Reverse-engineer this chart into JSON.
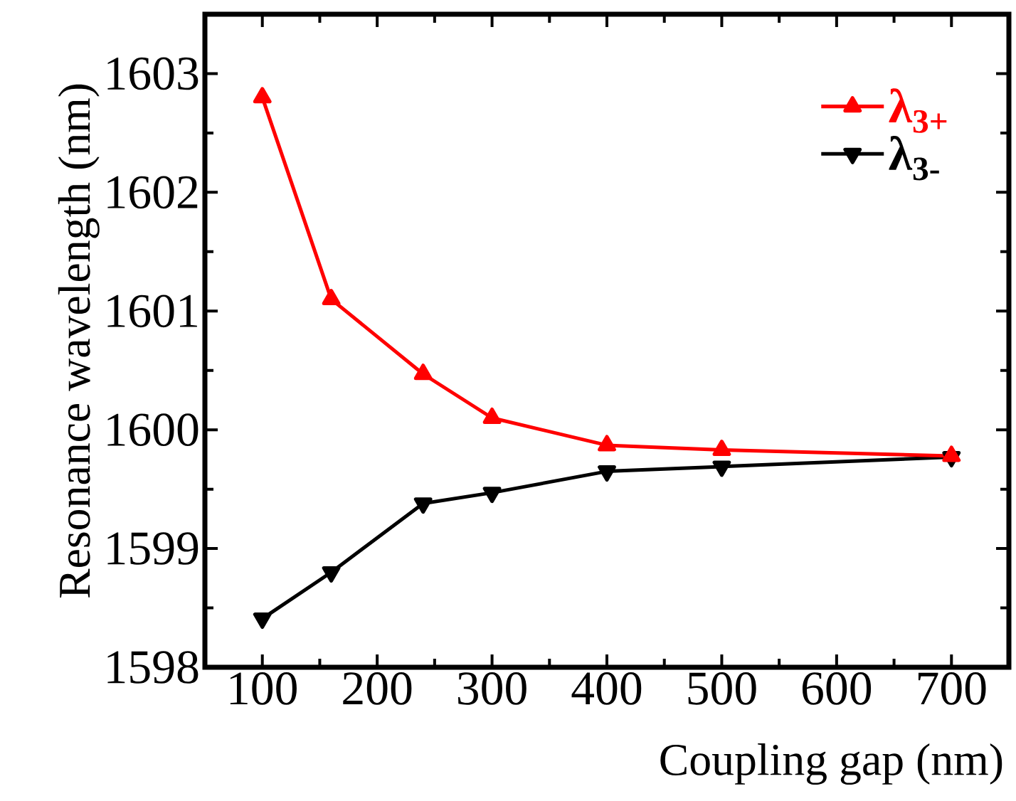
{
  "chart_data": {
    "type": "line",
    "xlabel": "Coupling gap (nm)",
    "ylabel": "Resonance wavelength (nm)",
    "x": [
      100,
      160,
      240,
      300,
      400,
      500,
      700
    ],
    "series": [
      {
        "name": "λ$_{3+}$",
        "color": "#ff0000",
        "marker": "triangle",
        "values": [
          1602.8,
          1601.1,
          1600.47,
          1600.1,
          1599.87,
          1599.83,
          1599.78
        ]
      },
      {
        "name": "λ$_{3-}$",
        "color": "#000000",
        "marker": "triangle-down",
        "values": [
          1598.41,
          1598.8,
          1599.38,
          1599.47,
          1599.65,
          1599.69,
          1599.77
        ]
      }
    ],
    "xlim": [
      50,
      750
    ],
    "xticks": [
      100,
      200,
      300,
      400,
      500,
      600,
      700
    ],
    "ylim": [
      1598,
      1603.5
    ],
    "yticks": [
      1598,
      1599,
      1600,
      1601,
      1602,
      1603
    ],
    "legend": "top right",
    "grid": false,
    "line_style": "solid"
  }
}
